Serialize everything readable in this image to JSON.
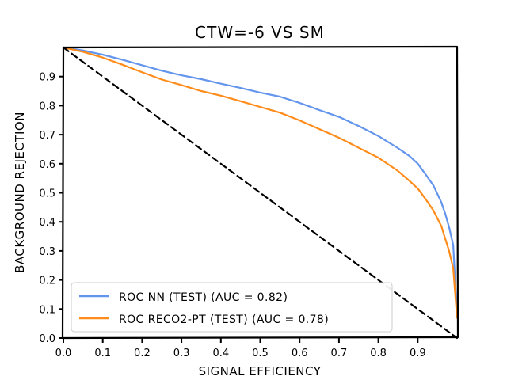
{
  "chart_data": {
    "type": "line",
    "title": "CTW=-6 VS SM",
    "xlabel": "SIGNAL EFFICIENCY",
    "ylabel": "BACKGROUND REJECTION",
    "xlim": [
      0.0,
      1.0
    ],
    "ylim": [
      0.0,
      1.0
    ],
    "x_ticks": [
      "0.0",
      "0.1",
      "0.2",
      "0.3",
      "0.4",
      "0.5",
      "0.6",
      "0.7",
      "0.8",
      "0.9"
    ],
    "y_ticks": [
      "0.0",
      "0.1",
      "0.2",
      "0.3",
      "0.4",
      "0.5",
      "0.6",
      "0.7",
      "0.8",
      "0.9"
    ],
    "grid": false,
    "legend_position": "lower-left",
    "series": [
      {
        "name": "ROC NN (TEST) (AUC = 0.82)",
        "color": "#6495ED",
        "style": "solid",
        "x": [
          0.0,
          0.05,
          0.1,
          0.15,
          0.2,
          0.25,
          0.3,
          0.35,
          0.4,
          0.45,
          0.5,
          0.55,
          0.6,
          0.65,
          0.7,
          0.75,
          0.8,
          0.85,
          0.88,
          0.9,
          0.92,
          0.94,
          0.96,
          0.97,
          0.98,
          0.99,
          1.0
        ],
        "y": [
          1.0,
          0.99,
          0.975,
          0.958,
          0.94,
          0.92,
          0.905,
          0.89,
          0.875,
          0.86,
          0.845,
          0.83,
          0.81,
          0.785,
          0.76,
          0.73,
          0.695,
          0.655,
          0.625,
          0.6,
          0.565,
          0.525,
          0.47,
          0.43,
          0.38,
          0.32,
          0.07
        ]
      },
      {
        "name": "ROC RECO2-PT (TEST) (AUC = 0.78)",
        "color": "#FF8C1A",
        "style": "solid",
        "x": [
          0.0,
          0.05,
          0.1,
          0.15,
          0.2,
          0.25,
          0.3,
          0.35,
          0.4,
          0.45,
          0.5,
          0.55,
          0.6,
          0.65,
          0.7,
          0.75,
          0.8,
          0.85,
          0.88,
          0.9,
          0.92,
          0.94,
          0.96,
          0.97,
          0.98,
          0.99,
          1.0
        ],
        "y": [
          1.0,
          0.985,
          0.965,
          0.94,
          0.915,
          0.89,
          0.87,
          0.85,
          0.835,
          0.815,
          0.795,
          0.775,
          0.75,
          0.72,
          0.69,
          0.655,
          0.62,
          0.575,
          0.54,
          0.515,
          0.48,
          0.44,
          0.385,
          0.345,
          0.3,
          0.24,
          0.07
        ]
      },
      {
        "name": "",
        "color": "#000000",
        "style": "dashed",
        "x": [
          0.0,
          1.0
        ],
        "y": [
          1.0,
          0.0
        ]
      }
    ]
  }
}
